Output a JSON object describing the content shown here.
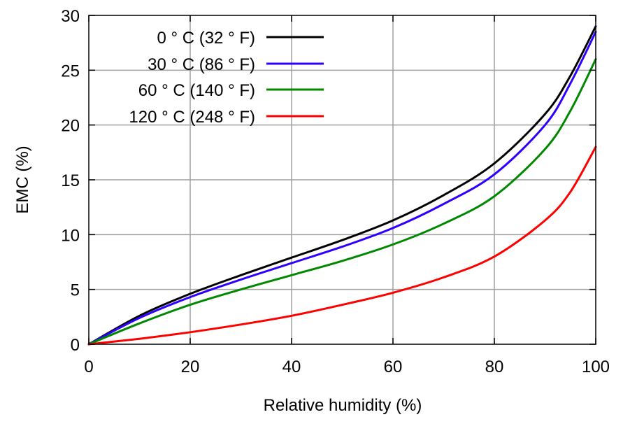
{
  "chart_data": {
    "type": "line",
    "xlabel": "Relative humidity (%)",
    "ylabel": "EMC (%)",
    "xlim": [
      0,
      100
    ],
    "ylim": [
      0,
      30
    ],
    "x_ticks": [
      "0",
      "20",
      "40",
      "60",
      "80",
      "100"
    ],
    "y_ticks": [
      "0",
      "5",
      "10",
      "15",
      "20",
      "25",
      "30"
    ],
    "grid": true,
    "legend_position": "top-left",
    "x": [
      0,
      10,
      20,
      30,
      40,
      50,
      60,
      70,
      80,
      90,
      95,
      100
    ],
    "series": [
      {
        "name": "0 ° C (32 ° F)",
        "color": "#000000",
        "values": [
          0,
          2.6,
          4.6,
          6.3,
          7.9,
          9.5,
          11.3,
          13.6,
          16.5,
          21.0,
          24.5,
          29.0
        ]
      },
      {
        "name": "30 ° C (86 ° F)",
        "color": "#3000ff",
        "values": [
          0,
          2.4,
          4.3,
          5.9,
          7.4,
          8.9,
          10.6,
          12.8,
          15.5,
          20.0,
          23.8,
          28.5
        ]
      },
      {
        "name": "60 ° C (140 ° F)",
        "color": "#008800",
        "values": [
          0,
          1.9,
          3.6,
          5.0,
          6.3,
          7.6,
          9.1,
          11.0,
          13.5,
          17.8,
          21.3,
          26.0
        ]
      },
      {
        "name": "120 ° C (248 ° F)",
        "color": "#ff0000",
        "values": [
          0,
          0.5,
          1.1,
          1.8,
          2.6,
          3.6,
          4.7,
          6.1,
          8.0,
          11.3,
          13.9,
          18.0
        ]
      }
    ]
  }
}
